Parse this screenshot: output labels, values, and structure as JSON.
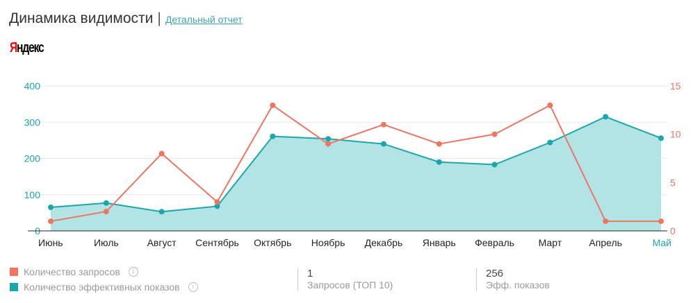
{
  "header": {
    "title": "Динамика видимости",
    "separator": "|",
    "report_link": "Детальный отчет"
  },
  "logo": {
    "first_letter": "Я",
    "rest": "ндекс"
  },
  "legend": {
    "items": [
      {
        "label": "Количество запросов",
        "color": "#f07560"
      },
      {
        "label": "Количество эффективных показов",
        "color": "#1aa7ac"
      }
    ],
    "info_glyph": "i"
  },
  "stats": [
    {
      "value": "1",
      "label": "Запросов (ТОП 10)"
    },
    {
      "value": "256",
      "label": "Эфф. показов"
    }
  ],
  "colors": {
    "queries": "#f07560",
    "impressions": "#1aa7ac",
    "area_fill": "#b2e4e6",
    "grid": "#e8e8e8",
    "axis_text": "#222222",
    "highlight_month": "#1aa7ac"
  },
  "chart_data": {
    "type": "line",
    "categories": [
      "Июнь",
      "Июль",
      "Август",
      "Сентябрь",
      "Октябрь",
      "Ноябрь",
      "Декабрь",
      "Январь",
      "Февраль",
      "Март",
      "Апрель",
      "Май"
    ],
    "highlighted_category": "Май",
    "y_left": {
      "ticks": [
        0,
        100,
        200,
        300,
        400
      ],
      "ylim": [
        0,
        400
      ]
    },
    "y_right": {
      "ticks": [
        0,
        5,
        10,
        15
      ],
      "ylim": [
        0,
        15
      ]
    },
    "grid": true,
    "series": [
      {
        "name": "Количество эффективных показов",
        "axis": "left",
        "style": "area",
        "values": [
          65,
          77,
          53,
          68,
          261,
          254,
          240,
          190,
          183,
          244,
          315,
          256
        ]
      },
      {
        "name": "Количество запросов",
        "axis": "right",
        "style": "line",
        "values": [
          1,
          2,
          8,
          3,
          13,
          9,
          11,
          9,
          10,
          13,
          1,
          1
        ]
      }
    ]
  }
}
